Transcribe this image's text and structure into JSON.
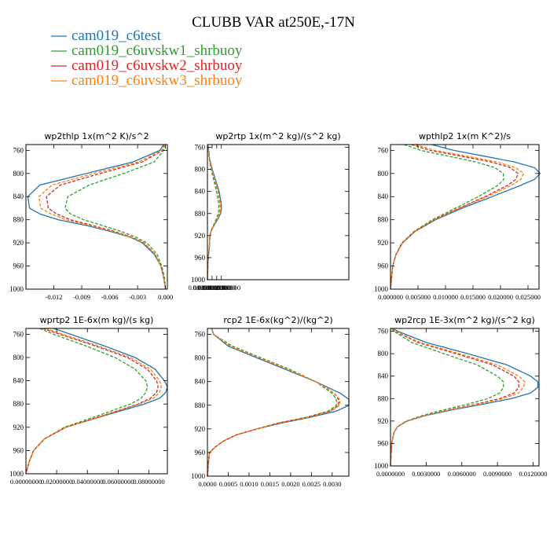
{
  "title": "CLUBB VAR at250E,-17N",
  "legend": [
    {
      "name": "cam019_c6test",
      "color": "#1f77b4"
    },
    {
      "name": "cam019_c6uvskw1_shrbuoy",
      "color": "#2ca02c"
    },
    {
      "name": "cam019_c6uvskw2_shrbuoy",
      "color": "#d62728"
    },
    {
      "name": "cam019_c6uvskw3_shrbuoy",
      "color": "#ff7f0e"
    }
  ],
  "chart_data": [
    {
      "type": "line",
      "title": "wp2thlp  1x(m^2 K)/s^2",
      "y_ticks": [
        "760",
        "800",
        "840",
        "880",
        "920",
        "960",
        "1000"
      ],
      "y_tick_values": [
        760,
        800,
        840,
        880,
        920,
        960,
        1000
      ],
      "ylim": [
        750,
        1000
      ],
      "y_inverted": true,
      "xlim": [
        -0.015,
        0.0002
      ],
      "x_ticks": [
        "-0.012",
        "-0.009",
        "-0.006",
        "-0.003",
        "0.000"
      ],
      "x_tick_values": [
        -0.012,
        -0.009,
        -0.006,
        -0.003,
        0.0
      ],
      "y": [
        750,
        760,
        780,
        800,
        820,
        840,
        860,
        870,
        880,
        890,
        900,
        910,
        920,
        940,
        960,
        980,
        1000
      ],
      "series": [
        {
          "name": "cam019_c6test",
          "style": "solid",
          "values": [
            -0.0002,
            -0.0006,
            -0.0035,
            -0.0085,
            -0.0135,
            -0.0148,
            -0.0146,
            -0.0135,
            -0.0115,
            -0.0085,
            -0.006,
            -0.0038,
            -0.0025,
            -0.0012,
            -0.0005,
            -0.0002,
            0.0
          ]
        },
        {
          "name": "cam019_c6uvskw1_shrbuoy",
          "style": "dashed",
          "values": [
            -0.0001,
            -0.0002,
            -0.0012,
            -0.0045,
            -0.0082,
            -0.0105,
            -0.0108,
            -0.0102,
            -0.0088,
            -0.0068,
            -0.0048,
            -0.0032,
            -0.002,
            -0.0009,
            -0.0004,
            -0.0001,
            0.0
          ]
        },
        {
          "name": "cam019_c6uvskw2_shrbuoy",
          "style": "dashed",
          "values": [
            -0.0001,
            -0.0003,
            -0.0025,
            -0.007,
            -0.0113,
            -0.0128,
            -0.0126,
            -0.0117,
            -0.0102,
            -0.0078,
            -0.0055,
            -0.0036,
            -0.0023,
            -0.0011,
            -0.0005,
            -0.0002,
            0.0
          ]
        },
        {
          "name": "cam019_c6uvskw3_shrbuoy",
          "style": "dashed",
          "values": [
            -0.0001,
            -0.0004,
            -0.0029,
            -0.0077,
            -0.0122,
            -0.0136,
            -0.0134,
            -0.0123,
            -0.0107,
            -0.0081,
            -0.0057,
            -0.0037,
            -0.0024,
            -0.0011,
            -0.0005,
            -0.0002,
            0.0
          ]
        }
      ]
    },
    {
      "type": "line",
      "title": "wp2rtp  1x(m^2 kg)/(s^2 kg)",
      "y_ticks": [
        "760",
        "800",
        "840",
        "880",
        "920",
        "960",
        "1000"
      ],
      "y_tick_values": [
        760,
        800,
        840,
        880,
        920,
        960,
        1000
      ],
      "ylim": [
        755,
        1000
      ],
      "y_inverted": true,
      "xlim": [
        0,
        0.000305
      ],
      "x_ticks": [
        "0.0000000000",
        "0.0000100000",
        "0.0000200000",
        "0.0000300000"
      ],
      "x_tick_values": [
        0.0,
        1e-05,
        2e-05,
        3e-05
      ],
      "y": [
        755,
        760,
        780,
        800,
        820,
        840,
        860,
        870,
        880,
        890,
        900,
        910,
        920,
        940,
        955,
        970,
        985,
        1000
      ],
      "series": [
        {
          "name": "cam019_c6test",
          "style": "solid",
          "values": [
            1.5e-06,
            1.8e-06,
            4.5e-06,
            1.05e-05,
            1.78e-05,
            2.52e-05,
            2.95e-05,
            3.05e-05,
            2.85e-05,
            2.25e-05,
            1.55e-05,
            9e-06,
            5.5e-06,
            4.2e-06,
            2.5e-06,
            1.2e-06,
            6e-07,
            0.0
          ]
        },
        {
          "name": "cam019_c6uvskw1_shrbuoy",
          "style": "dashed",
          "values": [
            1e-06,
            1.3e-06,
            3.6e-06,
            8e-06,
            1.38e-05,
            1.96e-05,
            2.35e-05,
            2.46e-05,
            2.35e-05,
            1.92e-05,
            1.38e-05,
            8.2e-06,
            5.2e-06,
            4e-06,
            2.4e-06,
            1.2e-06,
            6e-07,
            0.0
          ]
        },
        {
          "name": "cam019_c6uvskw2_shrbuoy",
          "style": "dashed",
          "values": [
            1.1e-06,
            1.5e-06,
            4e-06,
            9.3e-06,
            1.59e-05,
            2.28e-05,
            2.68e-05,
            2.78e-05,
            2.62e-05,
            2.08e-05,
            1.46e-05,
            8.6e-06,
            5.3e-06,
            4e-06,
            2.4e-06,
            1.2e-06,
            6e-07,
            0.0
          ]
        },
        {
          "name": "cam019_c6uvskw3_shrbuoy",
          "style": "dashed",
          "values": [
            1.2e-06,
            1.6e-06,
            4.2e-06,
            9.7e-06,
            1.65e-05,
            2.35e-05,
            2.76e-05,
            2.86e-05,
            2.69e-05,
            2.13e-05,
            1.49e-05,
            8.8e-06,
            5.4e-06,
            4.1e-06,
            2.5e-06,
            1.2e-06,
            6e-07,
            0.0
          ]
        }
      ]
    },
    {
      "type": "line",
      "title": "wpthlp2  1x(m K^2)/s",
      "y_ticks": [
        "760",
        "800",
        "840",
        "880",
        "920",
        "960",
        "1000"
      ],
      "y_tick_values": [
        760,
        800,
        840,
        880,
        920,
        960,
        1000
      ],
      "ylim": [
        750,
        1000
      ],
      "y_inverted": true,
      "xlim": [
        0,
        0.027
      ],
      "x_ticks": [
        "0.000000",
        "0.005000",
        "0.010000",
        "0.015000",
        "0.020000",
        "0.025000"
      ],
      "x_tick_values": [
        0.0,
        0.005,
        0.01,
        0.015,
        0.02,
        0.025
      ],
      "y": [
        750,
        760,
        770,
        780,
        790,
        800,
        810,
        820,
        840,
        860,
        880,
        900,
        920,
        940,
        960,
        980,
        1000
      ],
      "series": [
        {
          "name": "cam019_c6test",
          "style": "solid",
          "values": [
            0.0075,
            0.0115,
            0.017,
            0.0225,
            0.0262,
            0.0272,
            0.0262,
            0.0238,
            0.0185,
            0.013,
            0.0082,
            0.0045,
            0.0022,
            0.001,
            0.0004,
            0.0002,
            0.0
          ]
        },
        {
          "name": "cam019_c6uvskw1_shrbuoy",
          "style": "dashed",
          "values": [
            0.0025,
            0.0055,
            0.0105,
            0.0155,
            0.019,
            0.0205,
            0.0206,
            0.0196,
            0.016,
            0.0118,
            0.0076,
            0.0043,
            0.0021,
            0.001,
            0.0004,
            0.0002,
            0.0
          ]
        },
        {
          "name": "cam019_c6uvskw2_shrbuoy",
          "style": "dashed",
          "values": [
            0.0038,
            0.0072,
            0.0128,
            0.0183,
            0.0218,
            0.0232,
            0.0228,
            0.0214,
            0.0172,
            0.0124,
            0.0079,
            0.0044,
            0.0021,
            0.001,
            0.0004,
            0.0002,
            0.0
          ]
        },
        {
          "name": "cam019_c6uvskw3_shrbuoy",
          "style": "dashed",
          "values": [
            0.0045,
            0.0081,
            0.0138,
            0.0193,
            0.0228,
            0.0242,
            0.0237,
            0.0221,
            0.0176,
            0.0126,
            0.008,
            0.0044,
            0.0022,
            0.001,
            0.0004,
            0.0002,
            0.0
          ]
        }
      ]
    },
    {
      "type": "line",
      "title": "wprtp2  1E-6x(m kg)/(s kg)",
      "y_ticks": [
        "760",
        "800",
        "840",
        "880",
        "920",
        "960",
        "1000"
      ],
      "y_tick_values": [
        760,
        800,
        840,
        880,
        920,
        960,
        1000
      ],
      "ylim": [
        750,
        1000
      ],
      "y_inverted": true,
      "xlim": [
        0,
        0.092
      ],
      "x_ticks": [
        "0.00000000",
        "0.02000000",
        "0.04000000",
        "0.06000000",
        "0.08000000"
      ],
      "x_tick_values": [
        0.0,
        0.02,
        0.04,
        0.06,
        0.08
      ],
      "y": [
        750,
        760,
        780,
        800,
        820,
        840,
        850,
        860,
        870,
        880,
        900,
        920,
        940,
        960,
        980,
        1000
      ],
      "series": [
        {
          "name": "cam019_c6test",
          "style": "solid",
          "values": [
            0.018,
            0.029,
            0.051,
            0.071,
            0.084,
            0.09,
            0.092,
            0.091,
            0.087,
            0.077,
            0.051,
            0.026,
            0.012,
            0.005,
            0.002,
            0.0
          ]
        },
        {
          "name": "cam019_c6uvskw1_shrbuoy",
          "style": "dashed",
          "values": [
            0.009,
            0.018,
            0.039,
            0.058,
            0.071,
            0.078,
            0.079,
            0.078,
            0.075,
            0.068,
            0.047,
            0.025,
            0.012,
            0.005,
            0.002,
            0.0
          ]
        },
        {
          "name": "cam019_c6uvskw2_shrbuoy",
          "style": "dashed",
          "values": [
            0.011,
            0.022,
            0.045,
            0.066,
            0.079,
            0.085,
            0.086,
            0.085,
            0.081,
            0.073,
            0.05,
            0.026,
            0.012,
            0.005,
            0.002,
            0.0
          ]
        },
        {
          "name": "cam019_c6uvskw3_shrbuoy",
          "style": "dashed",
          "values": [
            0.013,
            0.024,
            0.047,
            0.068,
            0.081,
            0.087,
            0.088,
            0.087,
            0.083,
            0.074,
            0.05,
            0.026,
            0.012,
            0.005,
            0.002,
            0.0
          ]
        }
      ]
    },
    {
      "type": "line",
      "title": "rcp2  1E-6x(kg^2)/(kg^2)",
      "y_ticks": [
        "760",
        "800",
        "840",
        "880",
        "920",
        "960",
        "1000"
      ],
      "y_tick_values": [
        760,
        800,
        840,
        880,
        920,
        960,
        1000
      ],
      "ylim": [
        750,
        1000
      ],
      "y_inverted": true,
      "xlim": [
        0,
        0.0034
      ],
      "x_ticks": [
        "0.0000",
        "0.0005",
        "0.0010",
        "0.0015",
        "0.0020",
        "0.0025",
        "0.0030"
      ],
      "x_tick_values": [
        0.0,
        0.0005,
        0.001,
        0.0015,
        0.002,
        0.0025,
        0.003
      ],
      "y": [
        750,
        760,
        780,
        800,
        820,
        840,
        850,
        860,
        870,
        880,
        890,
        900,
        910,
        920,
        930,
        940,
        950,
        960,
        980,
        1000
      ],
      "series": [
        {
          "name": "cam019_c6test",
          "style": "solid",
          "values": [
            0.0001,
            0.00015,
            0.0005,
            0.0012,
            0.0019,
            0.0026,
            0.0029,
            0.0032,
            0.0034,
            0.0034,
            0.0031,
            0.0025,
            0.0018,
            0.0012,
            0.0007,
            0.0004,
            0.0002,
            5e-05,
            2e-05,
            0.0
          ]
        },
        {
          "name": "cam019_c6uvskw1_shrbuoy",
          "style": "dashed",
          "values": [
            0.0001,
            0.00015,
            0.0006,
            0.0013,
            0.002,
            0.0026,
            0.0028,
            0.003,
            0.0031,
            0.0031,
            0.0029,
            0.0024,
            0.0017,
            0.0012,
            0.0007,
            0.0004,
            0.0002,
            5e-05,
            2e-05,
            0.0
          ]
        },
        {
          "name": "cam019_c6uvskw2_shrbuoy",
          "style": "dashed",
          "values": [
            0.0001,
            0.00015,
            0.00055,
            0.00125,
            0.00195,
            0.0026,
            0.00285,
            0.00305,
            0.00315,
            0.00315,
            0.00295,
            0.00242,
            0.00172,
            0.0012,
            0.0007,
            0.0004,
            0.0002,
            5e-05,
            2e-05,
            0.0
          ]
        },
        {
          "name": "cam019_c6uvskw3_shrbuoy",
          "style": "dashed",
          "values": [
            0.0001,
            0.00015,
            0.00055,
            0.00125,
            0.00195,
            0.0026,
            0.00285,
            0.00305,
            0.00318,
            0.00318,
            0.00297,
            0.00244,
            0.00173,
            0.0012,
            0.0007,
            0.0004,
            0.0002,
            5e-05,
            2e-05,
            0.0
          ]
        }
      ]
    },
    {
      "type": "line",
      "title": "wp2rcp  1E-3x(m^2 kg)/(s^2 kg)",
      "y_ticks": [
        "760",
        "800",
        "840",
        "880",
        "920",
        "960",
        "1000"
      ],
      "y_tick_values": [
        760,
        800,
        840,
        880,
        920,
        960,
        1000
      ],
      "ylim": [
        755,
        1000
      ],
      "y_inverted": true,
      "xlim": [
        0,
        0.0125
      ],
      "x_ticks": [
        "0.0000000",
        "0.0030000",
        "0.0060000",
        "0.0090000",
        "0.0120000"
      ],
      "x_tick_values": [
        0.0,
        0.003,
        0.006,
        0.009,
        0.012
      ],
      "y": [
        755,
        760,
        780,
        800,
        820,
        840,
        850,
        860,
        870,
        880,
        890,
        900,
        910,
        920,
        930,
        940,
        960,
        980,
        1000
      ],
      "series": [
        {
          "name": "cam019_c6test",
          "style": "solid",
          "values": [
            0.0002,
            0.0006,
            0.003,
            0.0065,
            0.0098,
            0.0118,
            0.0124,
            0.0124,
            0.0118,
            0.0102,
            0.0078,
            0.0052,
            0.003,
            0.0014,
            0.0006,
            0.0003,
            0.0001,
            5e-05,
            0.0
          ]
        },
        {
          "name": "cam019_c6uvskw1_shrbuoy",
          "style": "dashed",
          "values": [
            0.0001,
            0.0003,
            0.0018,
            0.0045,
            0.0073,
            0.009,
            0.0095,
            0.0095,
            0.0092,
            0.0082,
            0.0065,
            0.0045,
            0.0027,
            0.0013,
            0.0006,
            0.0003,
            0.0001,
            5e-05,
            0.0
          ]
        },
        {
          "name": "cam019_c6uvskw2_shrbuoy",
          "style": "dashed",
          "values": [
            0.00015,
            0.0004,
            0.0023,
            0.0055,
            0.0086,
            0.0104,
            0.0108,
            0.0108,
            0.0104,
            0.0092,
            0.0072,
            0.0049,
            0.0029,
            0.0014,
            0.0006,
            0.0003,
            0.0001,
            5e-05,
            0.0
          ]
        },
        {
          "name": "cam019_c6uvskw3_shrbuoy",
          "style": "dashed",
          "values": [
            0.00015,
            0.00045,
            0.0025,
            0.0058,
            0.009,
            0.0108,
            0.0113,
            0.0112,
            0.0108,
            0.0095,
            0.0074,
            0.005,
            0.0029,
            0.0014,
            0.0006,
            0.0003,
            0.0001,
            5e-05,
            0.0
          ]
        }
      ]
    }
  ]
}
